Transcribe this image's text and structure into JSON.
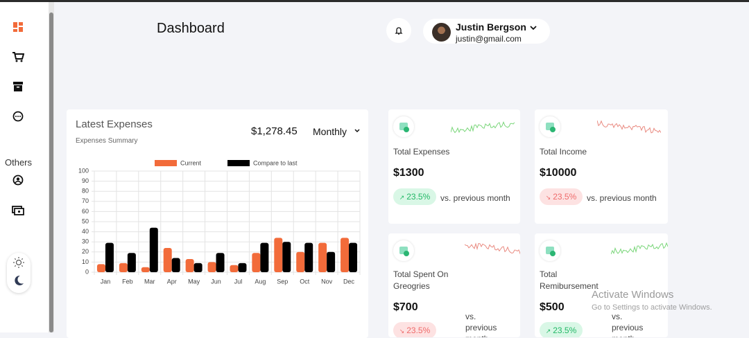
{
  "header": {
    "title": "Dashboard"
  },
  "user": {
    "name": "Justin Bergson",
    "email": "justin@gmail.com"
  },
  "sidebar": {
    "section": "Others"
  },
  "expenses": {
    "title": "Latest Expenses",
    "subtitle": "Expenses Summary",
    "total": "$1,278.45",
    "period": "Monthly",
    "chart_data": {
      "type": "bar",
      "categories": [
        "Jan",
        "Feb",
        "Mar",
        "Apr",
        "May",
        "Jun",
        "Jul",
        "Aug",
        "Sep",
        "Oct",
        "Nov",
        "Dec"
      ],
      "series": [
        {
          "name": "Current",
          "color": "#f26b3a",
          "values": [
            8,
            9,
            5,
            24,
            13,
            10,
            7,
            19,
            34,
            20,
            29,
            34
          ]
        },
        {
          "name": "Compare to last",
          "color": "#000000",
          "values": [
            29,
            19,
            44,
            14,
            9,
            19,
            9,
            29,
            30,
            29,
            20,
            29
          ]
        }
      ],
      "ylim": [
        0,
        100
      ],
      "yticks": [
        0,
        10,
        20,
        30,
        40,
        50,
        60,
        70,
        80,
        90,
        100
      ],
      "grid": true
    }
  },
  "stats": [
    {
      "label": "Total Expenses",
      "value": "$1300",
      "change": "23.5%",
      "direction": "up",
      "comparison": "vs. previous month"
    },
    {
      "label": "Total Income",
      "value": "$10000",
      "change": "23.5%",
      "direction": "down",
      "comparison": "vs. previous month"
    },
    {
      "label": "Total Spent On Greogries",
      "value": "$700",
      "change": "23.5%",
      "direction": "down",
      "comparison": "vs. previous month"
    },
    {
      "label": "Total Remibursement",
      "value": "$500",
      "change": "23.5%",
      "direction": "up",
      "comparison": "vs. previous month"
    }
  ],
  "watermark": {
    "title": "Activate Windows",
    "text": "Go to Settings to activate Windows."
  }
}
